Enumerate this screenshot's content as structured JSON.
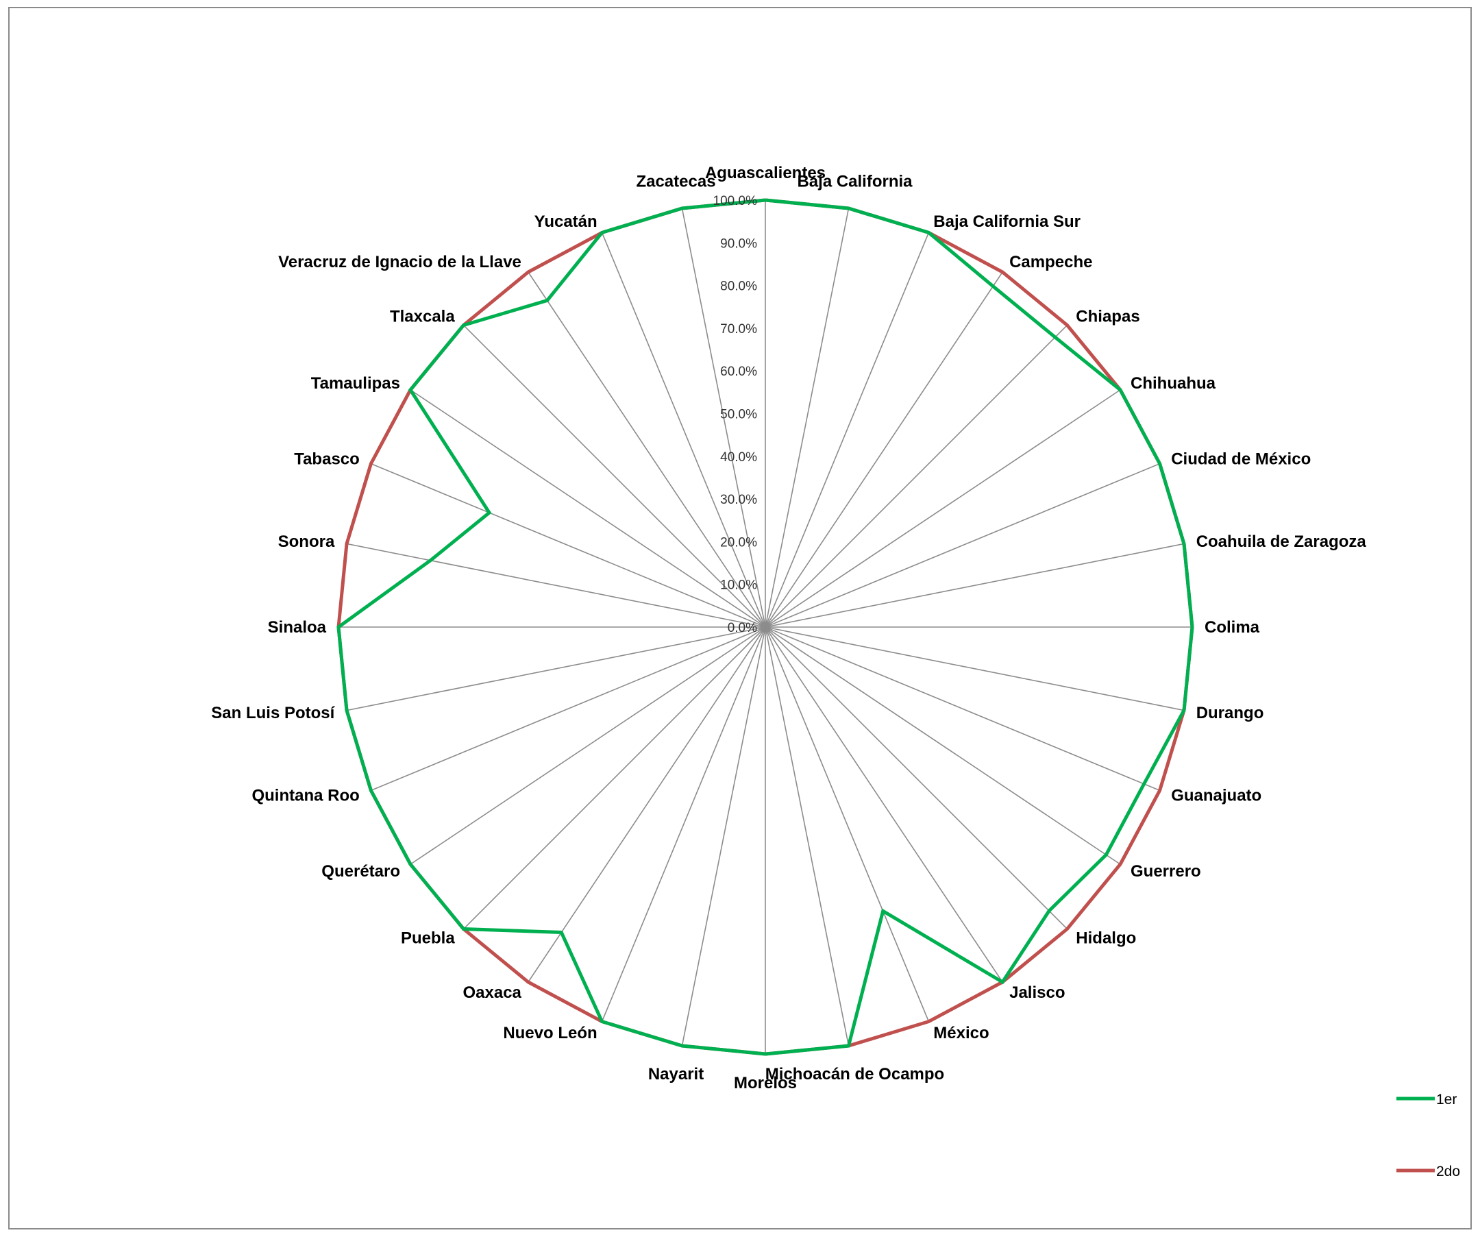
{
  "chart_data": {
    "type": "radar",
    "title": "",
    "categories": [
      "Aguascalientes",
      "Baja California",
      "Baja California Sur",
      "Campeche",
      "Chiapas",
      "Chihuahua",
      "Ciudad de México",
      "Coahuila de Zaragoza",
      "Colima",
      "Durango",
      "Guanajuato",
      "Guerrero",
      "Hidalgo",
      "Jalisco",
      "México",
      "Michoacán de Ocampo",
      "Morelos",
      "Nayarit",
      "Nuevo León",
      "Oaxaca",
      "Puebla",
      "Querétaro",
      "Quintana Roo",
      "San Luis Potosí",
      "Sinaloa",
      "Sonora",
      "Tabasco",
      "Tamaulipas",
      "Tlaxcala",
      "Veracruz de Ignacio de la Llave",
      "Yucatán",
      "Zacatecas"
    ],
    "tick_labels": [
      "0.0%",
      "10.0%",
      "20.0%",
      "30.0%",
      "40.0%",
      "50.0%",
      "60.0%",
      "70.0%",
      "80.0%",
      "90.0%",
      "100.0%"
    ],
    "rlim": [
      0,
      100
    ],
    "series": [
      {
        "name": "1er",
        "color": "#00b050",
        "values": [
          100,
          100,
          100,
          96,
          96,
          100,
          100,
          100,
          100,
          100,
          96,
          96,
          94,
          100,
          72,
          100,
          100,
          100,
          100,
          86,
          100,
          100,
          100,
          100,
          100,
          80,
          70,
          100,
          100,
          92,
          100,
          100
        ]
      },
      {
        "name": "2do",
        "color": "#c0504d",
        "values": [
          100,
          100,
          100,
          100,
          100,
          100,
          100,
          100,
          100,
          100,
          100,
          100,
          100,
          100,
          100,
          100,
          100,
          100,
          100,
          100,
          100,
          100,
          100,
          100,
          100,
          100,
          100,
          100,
          100,
          100,
          100,
          100
        ]
      }
    ],
    "grid": true,
    "legend_position": "right"
  }
}
